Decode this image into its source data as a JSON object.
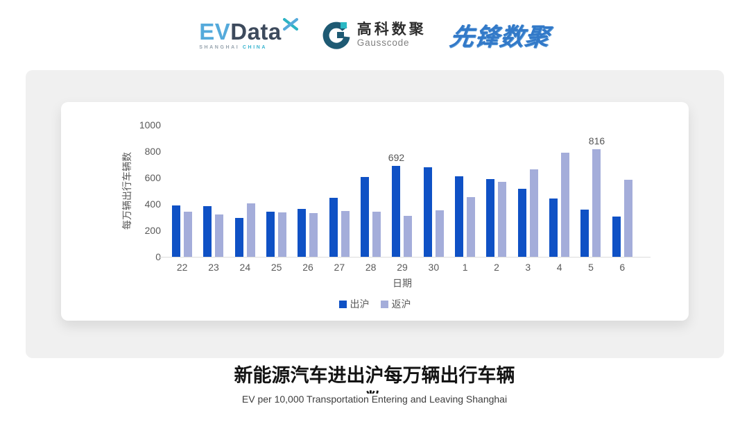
{
  "header": {
    "evdata": {
      "ev": "EV",
      "data": "Data",
      "sub_shanghai": "SHANGHAI",
      "sub_china": "CHINA"
    },
    "gausscode": {
      "cn": "高科数聚",
      "en": "Gausscode"
    },
    "pioneer": {
      "text": "先锋数聚"
    }
  },
  "chart_data": {
    "type": "bar",
    "title": "",
    "categories": [
      "22",
      "23",
      "24",
      "25",
      "26",
      "27",
      "28",
      "29",
      "30",
      "1",
      "2",
      "3",
      "4",
      "5",
      "6"
    ],
    "series": [
      {
        "name": "出沪",
        "color": "#0f51c5",
        "values": [
          390,
          385,
          295,
          345,
          363,
          448,
          608,
          692,
          680,
          612,
          588,
          518,
          443,
          360,
          303
        ]
      },
      {
        "name": "返沪",
        "color": "#a4adda",
        "values": [
          345,
          322,
          403,
          338,
          332,
          347,
          340,
          313,
          354,
          455,
          568,
          665,
          788,
          816,
          585
        ]
      }
    ],
    "annotations": [
      {
        "category": "29",
        "series": "出沪",
        "label": "692"
      },
      {
        "category": "5",
        "series": "返沪",
        "label": "816"
      }
    ],
    "xlabel": "日期",
    "ylabel": "每万辆出行车辆数",
    "ylim": [
      0,
      1000
    ],
    "yticks": [
      0,
      200,
      400,
      600,
      800,
      1000
    ],
    "grid": false,
    "legend_position": "bottom"
  },
  "footer": {
    "title": "新能源汽车进出沪每万辆出行车辆数",
    "subtitle": "EV per 10,000 Transportation Entering and Leaving Shanghai"
  },
  "colors": {
    "panel_bg": "#f0f0f0",
    "card_bg": "#ffffff",
    "axis_text": "#595959",
    "annotation_text": "#555555",
    "bar_dark": "#0f51c5",
    "bar_light": "#a4adda"
  }
}
